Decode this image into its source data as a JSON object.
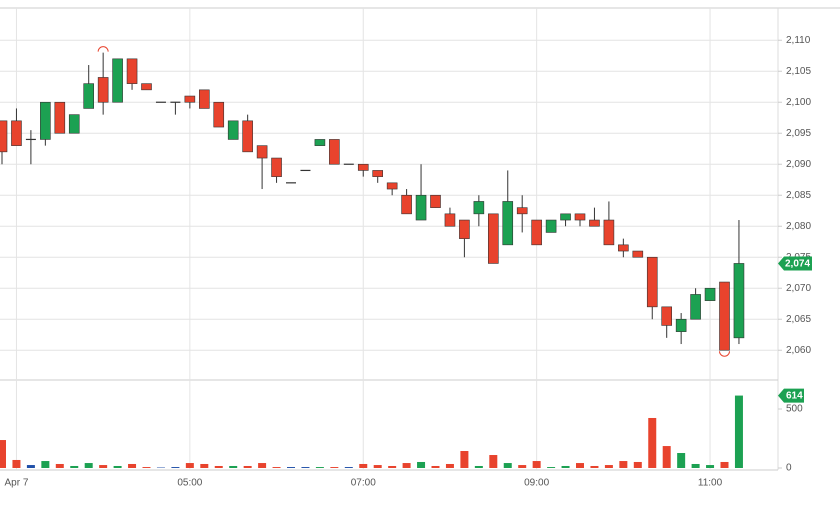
{
  "chart_data": {
    "type": "candlestick",
    "categories": [
      null,
      "Apr 7",
      null,
      null,
      null,
      null,
      null,
      null,
      null,
      null,
      null,
      null,
      null,
      "05:00",
      null,
      null,
      null,
      null,
      null,
      null,
      null,
      null,
      null,
      null,
      null,
      "07:00",
      null,
      null,
      null,
      null,
      null,
      null,
      null,
      null,
      null,
      null,
      null,
      "09:00",
      null,
      null,
      null,
      null,
      null,
      null,
      null,
      null,
      null,
      null,
      null,
      "11:00",
      null,
      null
    ],
    "open": [
      2097,
      2097,
      2094,
      2094,
      2100,
      2095,
      2099,
      2104,
      2100,
      2107,
      2103,
      2100,
      2100,
      2101,
      2102,
      2100,
      2094,
      2097,
      2093,
      2091,
      2087,
      2089,
      2093,
      2094,
      2090,
      2090,
      2089,
      2087,
      2085,
      2081,
      2085,
      2082,
      2081,
      2082,
      2082,
      2077,
      2083,
      2081,
      2079,
      2081,
      2082,
      2081,
      2081,
      2077,
      2076,
      2075,
      2067,
      2063,
      2065,
      2068,
      2071,
      2062
    ],
    "high": [
      2097,
      2099,
      2095.5,
      2100,
      2100,
      2098,
      2106,
      2108,
      2107,
      2107,
      2103,
      2100,
      2100,
      2101,
      2102,
      2100,
      2097,
      2098,
      2093,
      2091,
      2087,
      2089,
      2094,
      2094,
      2090,
      2090,
      2089,
      2087,
      2086,
      2090,
      2085,
      2083,
      2081,
      2085,
      2082,
      2089,
      2085,
      2081,
      2081,
      2082,
      2082,
      2083,
      2084,
      2078,
      2076,
      2075,
      2067,
      2066,
      2070,
      2070,
      2071,
      2081
    ],
    "low": [
      2090,
      2093,
      2090,
      2093,
      2095,
      2095,
      2099,
      2098,
      2100,
      2102,
      2102,
      2100,
      2098,
      2099,
      2099,
      2096,
      2094,
      2092,
      2086,
      2087,
      2087,
      2089,
      2093,
      2090,
      2090,
      2088,
      2087,
      2085,
      2082,
      2081,
      2083,
      2080,
      2075,
      2080,
      2074,
      2077,
      2079,
      2077,
      2079,
      2080,
      2080,
      2080,
      2077,
      2075,
      2075,
      2065,
      2062,
      2061,
      2065,
      2068,
      2060,
      2061
    ],
    "close": [
      2092,
      2093,
      2094,
      2100,
      2095,
      2098,
      2103,
      2100,
      2107,
      2103,
      2102,
      2100,
      2100,
      2100,
      2099,
      2096,
      2097,
      2092,
      2091,
      2088,
      2087,
      2089,
      2094,
      2090,
      2090,
      2089,
      2088,
      2086,
      2082,
      2085,
      2083,
      2080,
      2078,
      2084,
      2074,
      2084,
      2082,
      2077,
      2081,
      2082,
      2081,
      2080,
      2077,
      2076,
      2075,
      2067,
      2064,
      2065,
      2069,
      2070,
      2060,
      2074
    ],
    "volume": [
      237,
      68,
      25,
      59,
      34,
      17,
      42,
      25,
      17,
      34,
      8,
      4,
      8,
      42,
      34,
      17,
      17,
      17,
      42,
      8,
      8,
      8,
      8,
      8,
      8,
      34,
      25,
      17,
      42,
      51,
      17,
      34,
      144,
      17,
      110,
      42,
      25,
      59,
      8,
      17,
      42,
      17,
      25,
      59,
      51,
      424,
      186,
      127,
      34,
      25,
      51,
      614
    ],
    "colors": {
      "up": "#1ca152",
      "down": "#e8432d",
      "flat": "#1f4fa8"
    },
    "ylim": [
      2055.2,
      2115.2
    ],
    "yticks": [
      {
        "value": 2060,
        "label": "2,060"
      },
      {
        "value": 2065,
        "label": "2,065"
      },
      {
        "value": 2070,
        "label": "2,070"
      },
      {
        "value": 2075,
        "label": "2,075"
      },
      {
        "value": 2080,
        "label": "2,080"
      },
      {
        "value": 2085,
        "label": "2,085"
      },
      {
        "value": 2090,
        "label": "2,090"
      },
      {
        "value": 2095,
        "label": "2,095"
      },
      {
        "value": 2100,
        "label": "2,100"
      },
      {
        "value": 2105,
        "label": "2,105"
      },
      {
        "value": 2110,
        "label": "2,110"
      }
    ],
    "volume_ylim": [
      -17,
      746
    ],
    "volume_yticks": [
      0,
      500
    ],
    "price_tag": {
      "value": 2074,
      "label": "2,074"
    },
    "volume_tag": 614,
    "grid": true
  }
}
